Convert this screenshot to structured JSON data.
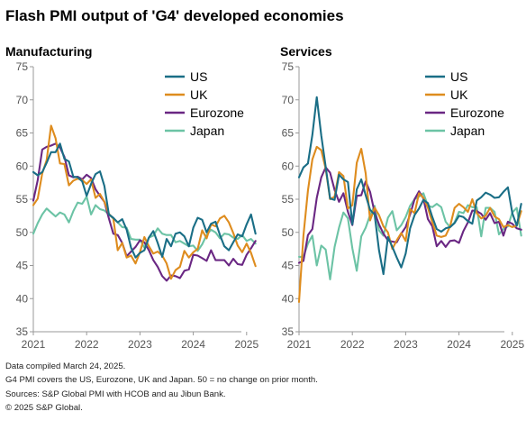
{
  "title": "Flash PMI output of 'G4' developed economies",
  "footnotes": [
    "Data compiled March 24, 2025.",
    "G4 PMI covers the US, Eurozone, UK and Japan. 50 = no change on prior month.",
    "Sources: S&P Global PMI with HCOB and au Jibun Bank.",
    "© 2025 S&P Global."
  ],
  "colors": {
    "US": "#1a6e86",
    "UK": "#de8c1e",
    "Eurozone": "#6a2783",
    "Japan": "#6cc3a5"
  },
  "chart_data": [
    {
      "type": "line",
      "title": "Manufacturing",
      "ylim": [
        35,
        75
      ],
      "yticks": [
        35,
        40,
        45,
        50,
        55,
        60,
        65,
        70,
        75
      ],
      "xticks": [
        "2021",
        "2022",
        "2023",
        "2024",
        "2025"
      ],
      "x_start": "2021-01",
      "legend_position": "top-right",
      "series": [
        {
          "name": "US",
          "values": [
            59.1,
            58.6,
            59.1,
            60.5,
            62.1,
            62.1,
            63.4,
            61.1,
            60.7,
            58.4,
            58.3,
            57.7,
            55.5,
            57.3,
            58.8,
            59.2,
            57.0,
            52.7,
            52.2,
            51.5,
            52.0,
            50.4,
            47.7,
            46.2,
            46.9,
            47.3,
            49.2,
            50.2,
            48.4,
            46.3,
            49.0,
            47.9,
            49.8,
            50.0,
            49.4,
            47.9,
            50.7,
            52.2,
            51.9,
            50.0,
            51.3,
            51.6,
            49.6,
            47.9,
            47.3,
            48.5,
            49.7,
            49.4,
            51.2,
            52.7,
            49.8
          ]
        },
        {
          "name": "UK",
          "values": [
            54.1,
            55.1,
            58.9,
            60.9,
            66.1,
            64.2,
            60.4,
            60.3,
            57.1,
            57.8,
            58.1,
            57.9,
            57.3,
            58.0,
            55.2,
            55.8,
            54.6,
            52.8,
            52.1,
            47.3,
            48.4,
            46.2,
            46.5,
            45.3,
            47.0,
            49.3,
            47.9,
            46.8,
            47.1,
            46.5,
            45.3,
            43.0,
            44.3,
            44.8,
            47.2,
            46.2,
            47.0,
            47.5,
            50.3,
            49.1,
            51.2,
            50.9,
            52.1,
            52.5,
            51.5,
            49.9,
            48.0,
            47.0,
            48.3,
            46.9,
            44.9
          ]
        },
        {
          "name": "Eurozone",
          "values": [
            54.8,
            57.9,
            62.5,
            62.9,
            63.1,
            63.4,
            62.8,
            61.4,
            58.6,
            58.3,
            58.4,
            58.0,
            58.7,
            58.2,
            56.5,
            55.5,
            54.6,
            52.1,
            49.8,
            49.6,
            48.4,
            46.4,
            47.1,
            47.8,
            48.8,
            48.5,
            47.3,
            45.8,
            44.8,
            43.4,
            42.7,
            43.5,
            43.4,
            43.1,
            44.2,
            44.4,
            46.6,
            46.5,
            46.1,
            45.7,
            47.3,
            45.8,
            45.8,
            45.8,
            45.0,
            46.0,
            45.2,
            45.1,
            46.6,
            47.6,
            48.7
          ]
        },
        {
          "name": "Japan",
          "values": [
            49.8,
            51.4,
            52.7,
            53.6,
            53.0,
            52.4,
            53.0,
            52.7,
            51.5,
            53.2,
            54.5,
            54.3,
            55.4,
            52.7,
            54.1,
            53.5,
            53.3,
            52.7,
            52.1,
            51.5,
            50.8,
            50.7,
            49.0,
            48.9,
            48.9,
            47.7,
            49.2,
            49.5,
            50.6,
            49.8,
            49.6,
            49.6,
            48.5,
            48.7,
            48.3,
            47.9,
            48.0,
            47.2,
            48.2,
            49.6,
            50.4,
            50.0,
            49.1,
            49.8,
            49.7,
            49.2,
            49.0,
            49.6,
            48.7,
            49.0,
            48.3
          ]
        }
      ]
    },
    {
      "type": "line",
      "title": "Services",
      "ylim": [
        35,
        75
      ],
      "yticks": [
        35,
        40,
        45,
        50,
        55,
        60,
        65,
        70,
        75
      ],
      "xticks": [
        "2021",
        "2022",
        "2023",
        "2024",
        "2025"
      ],
      "x_start": "2021-01",
      "legend_position": "top-right",
      "series": [
        {
          "name": "US",
          "values": [
            58.3,
            59.8,
            60.4,
            64.7,
            70.4,
            64.6,
            59.9,
            55.1,
            54.9,
            58.7,
            58.0,
            57.6,
            51.2,
            56.5,
            58.0,
            55.6,
            53.4,
            52.7,
            47.3,
            43.7,
            49.3,
            47.8,
            46.2,
            44.7,
            46.8,
            50.6,
            52.6,
            53.6,
            54.9,
            54.4,
            52.3,
            50.5,
            50.1,
            50.6,
            50.8,
            51.4,
            52.5,
            52.3,
            51.7,
            51.3,
            54.8,
            55.3,
            56.0,
            55.7,
            55.2,
            55.3,
            56.1,
            56.8,
            52.9,
            51.0,
            54.3
          ]
        },
        {
          "name": "UK",
          "values": [
            39.5,
            49.5,
            56.3,
            61.0,
            62.9,
            62.4,
            59.6,
            55.0,
            55.4,
            59.1,
            58.5,
            53.6,
            54.1,
            60.5,
            62.6,
            58.9,
            51.8,
            53.7,
            52.6,
            50.9,
            50.0,
            47.5,
            48.8,
            49.9,
            48.7,
            53.5,
            52.9,
            55.9,
            55.2,
            53.7,
            51.5,
            49.5,
            49.3,
            49.5,
            50.9,
            53.7,
            54.3,
            53.8,
            53.1,
            55.0,
            52.9,
            52.1,
            52.5,
            53.7,
            52.4,
            52.0,
            50.8,
            51.1,
            50.8,
            51.0,
            53.2
          ]
        },
        {
          "name": "Eurozone",
          "values": [
            45.4,
            45.7,
            49.6,
            50.5,
            55.2,
            58.3,
            59.8,
            59.0,
            56.4,
            54.6,
            55.9,
            53.1,
            51.1,
            55.5,
            55.6,
            57.7,
            56.1,
            53.0,
            51.2,
            49.8,
            48.8,
            48.6,
            48.5,
            49.8,
            50.8,
            52.7,
            55.0,
            56.2,
            55.1,
            52.0,
            50.9,
            47.9,
            48.7,
            47.8,
            48.7,
            48.8,
            48.4,
            50.2,
            51.5,
            53.3,
            53.2,
            52.8,
            51.9,
            52.9,
            51.4,
            51.6,
            49.5,
            51.6,
            51.3,
            50.6,
            50.4
          ]
        },
        {
          "name": "Japan",
          "values": [
            46.3,
            46.3,
            48.3,
            49.5,
            45.0,
            48.0,
            47.4,
            42.9,
            47.8,
            50.7,
            53.0,
            52.1,
            47.6,
            44.2,
            49.4,
            50.7,
            52.6,
            54.0,
            50.3,
            49.5,
            52.2,
            53.2,
            50.3,
            51.1,
            52.3,
            54.0,
            55.0,
            55.4,
            55.9,
            54.0,
            53.8,
            54.3,
            53.8,
            51.6,
            50.8,
            51.5,
            53.1,
            52.9,
            54.1,
            53.8,
            53.8,
            49.4,
            53.7,
            53.7,
            53.1,
            49.7,
            50.5,
            50.9,
            53.0,
            53.7,
            49.5
          ]
        }
      ]
    }
  ]
}
